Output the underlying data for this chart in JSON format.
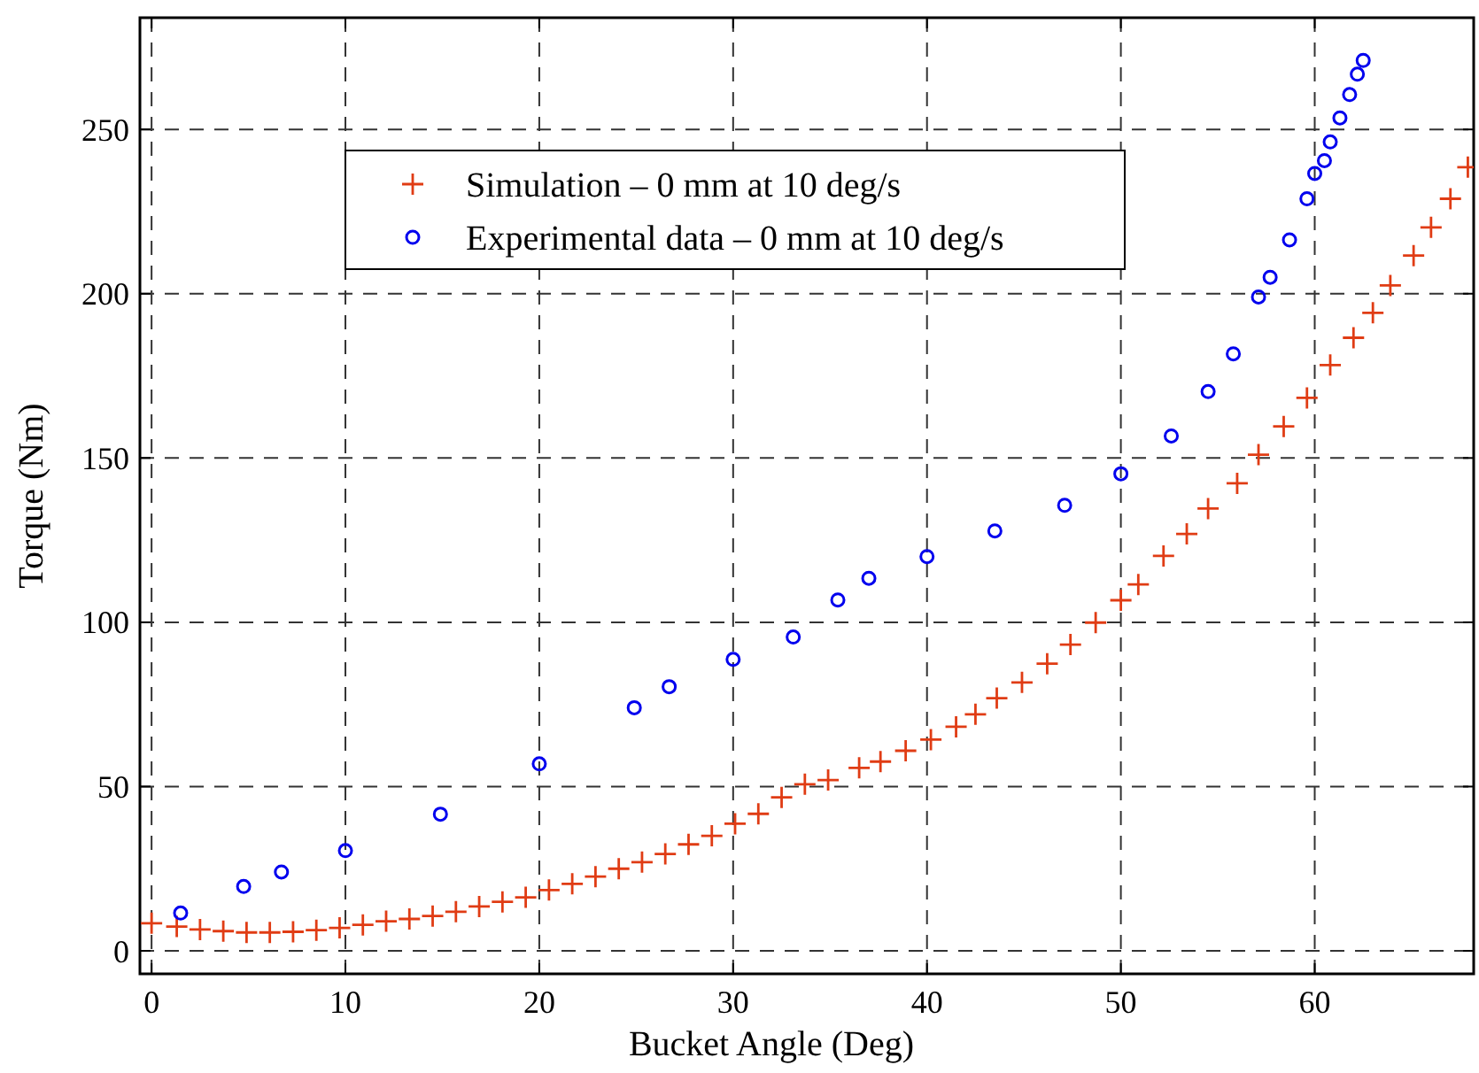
{
  "chart_data": {
    "type": "scatter",
    "xlabel": "Bucket Angle (Deg)",
    "ylabel": "Torque (Nm)",
    "xlim": [
      -0.6,
      68.2
    ],
    "ylim": [
      -7,
      284
    ],
    "xticks": [
      0,
      10,
      20,
      30,
      40,
      50,
      60
    ],
    "yticks": [
      0,
      50,
      100,
      150,
      200,
      250
    ],
    "grid": true,
    "legend": "top left",
    "series": [
      {
        "name": "Simulation – 0 mm at 10 deg/s",
        "color": "#e03c14",
        "marker": "cross",
        "x": [
          0,
          1.3,
          2.5,
          3.7,
          4.9,
          6.1,
          7.3,
          8.5,
          9.7,
          10.9,
          12.1,
          13.3,
          14.5,
          15.7,
          16.9,
          18.1,
          19.3,
          20.5,
          21.7,
          22.9,
          24.1,
          25.3,
          26.5,
          27.7,
          28.9,
          30.1,
          31.3,
          32.5,
          33.7,
          34.9,
          36.5,
          37.6,
          38.9,
          40.2,
          41.5,
          42.5,
          43.6,
          44.9,
          46.2,
          47.4,
          48.7,
          50,
          50.9,
          52.2,
          53.4,
          54.5,
          56,
          57.1,
          58.4,
          59.6,
          60.8,
          62,
          63,
          63.9,
          65.1,
          66,
          67,
          67.9
        ],
        "values": [
          8.4,
          7.4,
          6.5,
          6,
          5.6,
          5.6,
          5.8,
          6.3,
          7,
          7.9,
          9,
          9.7,
          10.6,
          11.9,
          13.5,
          14.9,
          16.3,
          18.5,
          20.4,
          22.6,
          25,
          27,
          29.5,
          32.4,
          35,
          38.7,
          41.7,
          46.7,
          50.7,
          52,
          55.7,
          57.6,
          60.9,
          64.3,
          68.2,
          72,
          76.9,
          81.7,
          87.4,
          93.2,
          99.9,
          106.7,
          111.5,
          120.2,
          126.9,
          134.6,
          142.3,
          151,
          159.6,
          168.3,
          178.3,
          186.6,
          194.2,
          202.5,
          211.6,
          220.2,
          228.9,
          238.5
        ]
      },
      {
        "name": "Experimental data – 0 mm at 10 deg/s",
        "color": "#0000ee",
        "marker": "circle",
        "x": [
          1.5,
          4.75,
          6.7,
          10,
          14.9,
          20,
          24.9,
          26.7,
          30,
          33.1,
          35.4,
          37,
          40,
          43.5,
          47.1,
          50,
          52.6,
          54.5,
          55.8,
          57.1,
          57.7,
          58.7,
          59.6,
          60,
          60.5,
          60.8,
          61.3,
          61.8,
          62.2,
          62.5
        ],
        "values": [
          11.5,
          19.6,
          24,
          30.5,
          41.6,
          56.9,
          74,
          80.4,
          88.7,
          95.5,
          106.8,
          113.4,
          120,
          127.8,
          135.6,
          145.2,
          156.7,
          170.2,
          181.7,
          199,
          205,
          216.4,
          228.9,
          236.6,
          240.5,
          246.2,
          253.5,
          260.6,
          266.8,
          271
        ]
      }
    ]
  }
}
